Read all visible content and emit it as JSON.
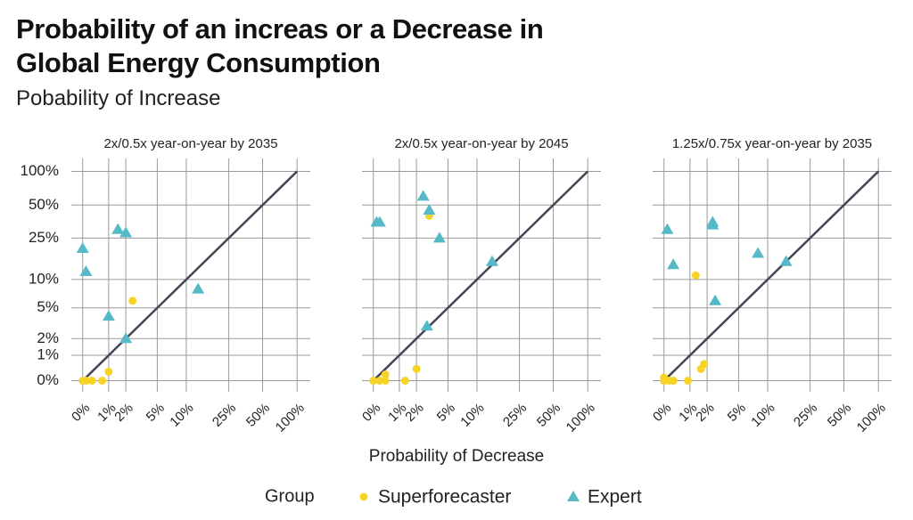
{
  "header": {
    "title": "Probability of an increas or a Decrease in Global Energy Consumption",
    "subtitle": "Pobability of Increase",
    "xlabel": "Probability of Decrease",
    "legend_title": "Group"
  },
  "chart_data": [
    {
      "type": "scatter",
      "title": "2x/0.5x year-on-year by 2035",
      "grid": true,
      "diagonal": true,
      "xlim": [
        -0.3,
        130
      ],
      "ylim": [
        -0.3,
        130
      ],
      "xticks": [
        {
          "value": 0,
          "label": "0%"
        },
        {
          "value": 1,
          "label": "1%"
        },
        {
          "value": 2,
          "label": "2%"
        },
        {
          "value": 5,
          "label": "5%"
        },
        {
          "value": 10,
          "label": "10%"
        },
        {
          "value": 25,
          "label": "25%"
        },
        {
          "value": 50,
          "label": "50%"
        },
        {
          "value": 100,
          "label": "100%"
        }
      ],
      "yticks": [
        {
          "value": 0,
          "label": "0%"
        },
        {
          "value": 1,
          "label": "1%"
        },
        {
          "value": 2,
          "label": "2%"
        },
        {
          "value": 5,
          "label": "5%"
        },
        {
          "value": 10,
          "label": "10%"
        },
        {
          "value": 25,
          "label": "25%"
        },
        {
          "value": 50,
          "label": "50%"
        },
        {
          "value": 100,
          "label": "100%"
        }
      ],
      "series": [
        {
          "name": "Superforecaster",
          "color": "#f5d327",
          "marker": "circle",
          "x": [
            2.5,
            1,
            0.7,
            0.3,
            0.1,
            0
          ],
          "values": [
            6,
            0.3,
            0,
            0,
            0,
            0
          ]
        },
        {
          "name": "Expert",
          "color": "#56b9c7",
          "marker": "triangle",
          "x": [
            0,
            0.1,
            1.5,
            2,
            1,
            2,
            13
          ],
          "values": [
            20,
            12,
            30,
            28,
            4,
            2,
            8
          ]
        }
      ]
    },
    {
      "type": "scatter",
      "title": "2x/0.5x year-on-year by 2045",
      "grid": true,
      "diagonal": true,
      "xlim": [
        -0.3,
        130
      ],
      "ylim": [
        -0.3,
        130
      ],
      "xticks": [
        {
          "value": 0,
          "label": "0%"
        },
        {
          "value": 1,
          "label": "1%"
        },
        {
          "value": 2,
          "label": "2%"
        },
        {
          "value": 5,
          "label": "5%"
        },
        {
          "value": 10,
          "label": "10%"
        },
        {
          "value": 25,
          "label": "25%"
        },
        {
          "value": 50,
          "label": "50%"
        },
        {
          "value": 100,
          "label": "100%"
        }
      ],
      "yticks": [
        {
          "value": 0,
          "label": "0%"
        },
        {
          "value": 1,
          "label": "1%"
        },
        {
          "value": 2,
          "label": "2%"
        },
        {
          "value": 5,
          "label": "5%"
        },
        {
          "value": 10,
          "label": "10%"
        },
        {
          "value": 25,
          "label": "25%"
        },
        {
          "value": 50,
          "label": "50%"
        },
        {
          "value": 100,
          "label": "100%"
        }
      ],
      "series": [
        {
          "name": "Superforecaster",
          "color": "#f5d327",
          "marker": "circle",
          "x": [
            3,
            2,
            1.3,
            0.4,
            0.4,
            0.2,
            0
          ],
          "values": [
            40,
            0.4,
            0,
            0.2,
            0,
            0,
            0
          ]
        },
        {
          "name": "Expert",
          "color": "#56b9c7",
          "marker": "triangle",
          "x": [
            0.1,
            0.2,
            2.5,
            3,
            4,
            14,
            2.8
          ],
          "values": [
            35,
            35,
            60,
            45,
            25,
            15,
            3
          ]
        }
      ]
    },
    {
      "type": "scatter",
      "title": "1.25x/0.75x year-on-year by 2035",
      "grid": true,
      "diagonal": true,
      "xlim": [
        -0.3,
        130
      ],
      "ylim": [
        -0.3,
        130
      ],
      "xticks": [
        {
          "value": 0,
          "label": "0%"
        },
        {
          "value": 1,
          "label": "1%"
        },
        {
          "value": 2,
          "label": "2%"
        },
        {
          "value": 5,
          "label": "5%"
        },
        {
          "value": 10,
          "label": "10%"
        },
        {
          "value": 25,
          "label": "25%"
        },
        {
          "value": 50,
          "label": "50%"
        },
        {
          "value": 100,
          "label": "100%"
        }
      ],
      "yticks": [
        {
          "value": 0,
          "label": "0%"
        },
        {
          "value": 1,
          "label": "1%"
        },
        {
          "value": 2,
          "label": "2%"
        },
        {
          "value": 5,
          "label": "5%"
        },
        {
          "value": 10,
          "label": "10%"
        },
        {
          "value": 25,
          "label": "25%"
        },
        {
          "value": 50,
          "label": "50%"
        },
        {
          "value": 100,
          "label": "100%"
        }
      ],
      "series": [
        {
          "name": "Superforecaster",
          "color": "#f5d327",
          "marker": "circle",
          "x": [
            1.3,
            1.8,
            1.6,
            0.9,
            0.3,
            0,
            0,
            0.15
          ],
          "values": [
            11,
            0.6,
            0.4,
            0,
            0,
            0.1,
            0,
            0
          ]
        },
        {
          "name": "Expert",
          "color": "#56b9c7",
          "marker": "triangle",
          "x": [
            0.1,
            0.3,
            2.4,
            2.4,
            2.6,
            8,
            15
          ],
          "values": [
            30,
            14,
            35,
            33,
            6,
            18,
            15
          ]
        }
      ]
    }
  ]
}
